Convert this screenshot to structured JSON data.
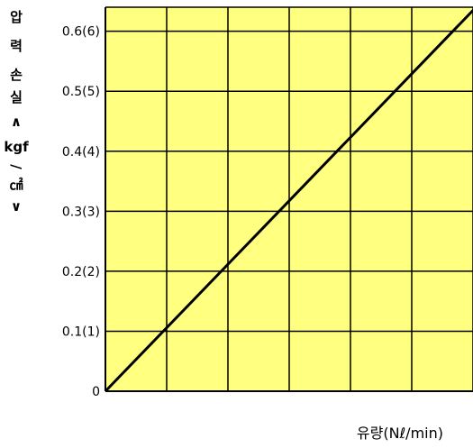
{
  "chart_data": {
    "type": "line",
    "title": "",
    "xlabel": "유량(Nℓ/min)",
    "ylabel": "압력손실(kgf/㎠)",
    "ylabel_chars": [
      "압",
      "력",
      "손",
      "실",
      "∧",
      "kgf",
      "/",
      "㎠",
      "∨"
    ],
    "yticks": [
      {
        "value": 0,
        "label": "0"
      },
      {
        "value": 0.1,
        "label": "0.1(1)"
      },
      {
        "value": 0.2,
        "label": "0.2(2)"
      },
      {
        "value": 0.3,
        "label": "0.3(3)"
      },
      {
        "value": 0.4,
        "label": "0.4(4)"
      },
      {
        "value": 0.5,
        "label": "0.5(5)"
      },
      {
        "value": 0.6,
        "label": "0.6(6)"
      }
    ],
    "ylim": [
      0,
      0.64
    ],
    "x_gridlines": 6,
    "grid": true,
    "background_color": "#ffff80",
    "grid_color": "#000000",
    "series": [
      {
        "points": [
          [
            0,
            0
          ],
          [
            6.05,
            0.64
          ]
        ],
        "color": "#000000"
      }
    ],
    "xlim": [
      0,
      6.05
    ]
  }
}
